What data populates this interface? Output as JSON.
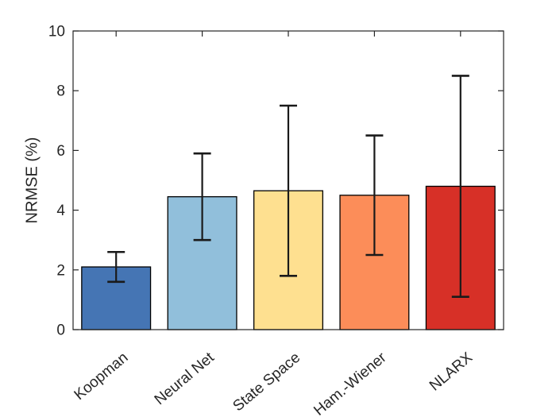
{
  "figure": {
    "background": "#FFFFFF"
  },
  "chart_data": {
    "type": "bar",
    "title": "",
    "xlabel": "",
    "ylabel": "NRMSE (%)",
    "categories": [
      "Koopman",
      "Neural Net",
      "State Space",
      "Ham.-Wiener",
      "NLARX"
    ],
    "values": [
      2.1,
      4.45,
      4.65,
      4.5,
      4.8
    ],
    "error_low": [
      1.6,
      3.0,
      1.8,
      2.5,
      1.1
    ],
    "error_high": [
      2.6,
      5.9,
      7.5,
      6.5,
      8.5
    ],
    "bar_colors": [
      "#4575B4",
      "#91BFDB",
      "#FEE090",
      "#FC8D59",
      "#D73027"
    ],
    "bar_edge_color": "#000000",
    "error_bar_color": "#1A1A1A",
    "axis_color": "#262626",
    "tick_label_color": "#262626",
    "ylim": [
      0,
      10
    ],
    "yticks": [
      0,
      2,
      4,
      6,
      8,
      10
    ],
    "grid": false,
    "legend_position": "none",
    "x_tick_rotation_deg": 40,
    "bar_width_fraction": 0.8
  }
}
